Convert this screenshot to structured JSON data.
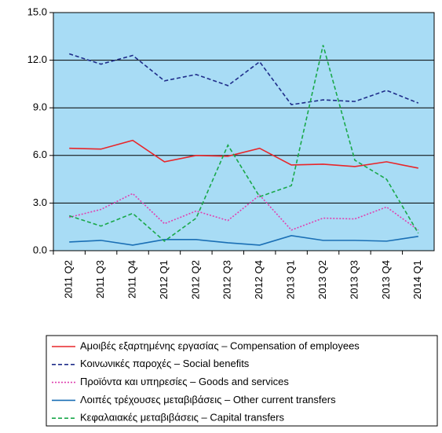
{
  "chart_data": {
    "type": "line",
    "categories": [
      "2011 Q2",
      "2011 Q3",
      "2011 Q4",
      "2012 Q1",
      "2012 Q2",
      "2012 Q3",
      "2012 Q4",
      "2013 Q1",
      "2013 Q2",
      "2013 Q3",
      "2013 Q4",
      "2014 Q1"
    ],
    "series": [
      {
        "name": "Αμοιβές εξαρτημένης εργασίας – Compensation of employees",
        "color": "#e8262a",
        "style": "solid",
        "values": [
          6.45,
          6.4,
          6.95,
          5.6,
          6.0,
          5.95,
          6.45,
          5.4,
          5.45,
          5.3,
          5.6,
          5.2
        ]
      },
      {
        "name": "Κοινωνικές παροχές – Social benefits",
        "color": "#1f2d8a",
        "style": "dashed",
        "values": [
          12.4,
          11.75,
          12.3,
          10.7,
          11.1,
          10.4,
          11.9,
          9.2,
          9.5,
          9.4,
          10.1,
          9.3
        ]
      },
      {
        "name": "Προϊόντα και υπηρεσίες – Goods and services",
        "color": "#e040b0",
        "style": "dotted",
        "values": [
          2.1,
          2.6,
          3.6,
          1.7,
          2.5,
          1.9,
          3.5,
          1.3,
          2.05,
          2.0,
          2.75,
          1.3
        ]
      },
      {
        "name": "Λοιπές τρέχουσες μεταβιβάσεις – Other current transfers",
        "color": "#1a6fb5",
        "style": "solid",
        "values": [
          0.55,
          0.65,
          0.35,
          0.7,
          0.7,
          0.5,
          0.35,
          0.95,
          0.65,
          0.65,
          0.6,
          0.9
        ]
      },
      {
        "name": "Κεφαλαιακές μεταβιβάσεις – Capital transfers",
        "color": "#1aa84a",
        "style": "dashed",
        "values": [
          2.2,
          1.55,
          2.35,
          0.6,
          2.05,
          6.65,
          3.4,
          4.1,
          12.95,
          5.7,
          4.5,
          1.1
        ]
      }
    ],
    "ylim": [
      0,
      15
    ],
    "yticks": [
      {
        "value": 0,
        "label": "0.0"
      },
      {
        "value": 3,
        "label": "3.0"
      },
      {
        "value": 6,
        "label": "6.0"
      },
      {
        "value": 9,
        "label": "9.0"
      },
      {
        "value": 12,
        "label": "12.0"
      },
      {
        "value": 15,
        "label": "15.0"
      }
    ],
    "grid": true,
    "background": "#a8dcf5",
    "legend": "bottom"
  }
}
